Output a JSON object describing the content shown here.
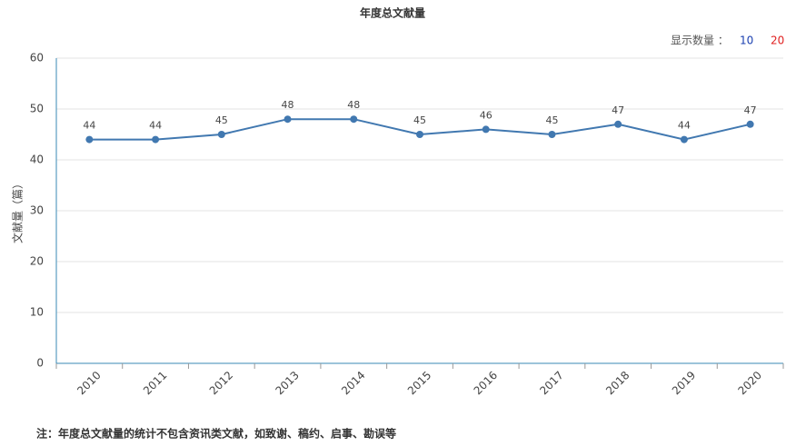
{
  "chart_data": {
    "type": "line",
    "title": "年度总文献量",
    "y_label": "文献量（篇）",
    "categories": [
      "2010",
      "2011",
      "2012",
      "2013",
      "2014",
      "2015",
      "2016",
      "2017",
      "2018",
      "2019",
      "2020"
    ],
    "values": [
      44,
      44,
      45,
      48,
      48,
      45,
      46,
      45,
      47,
      44,
      47
    ],
    "color": "#4178b0",
    "ylim": [
      0,
      60
    ],
    "yticks": [
      0,
      10,
      20,
      30,
      40,
      50,
      60
    ],
    "grid": true,
    "data_labels": true
  },
  "display_count": {
    "label": "显示数量 ：",
    "options": [
      "10",
      "20"
    ]
  },
  "note": "注：年度总文献量的统计不包含资讯类文献，如致谢、稿约、启事、勘误等"
}
